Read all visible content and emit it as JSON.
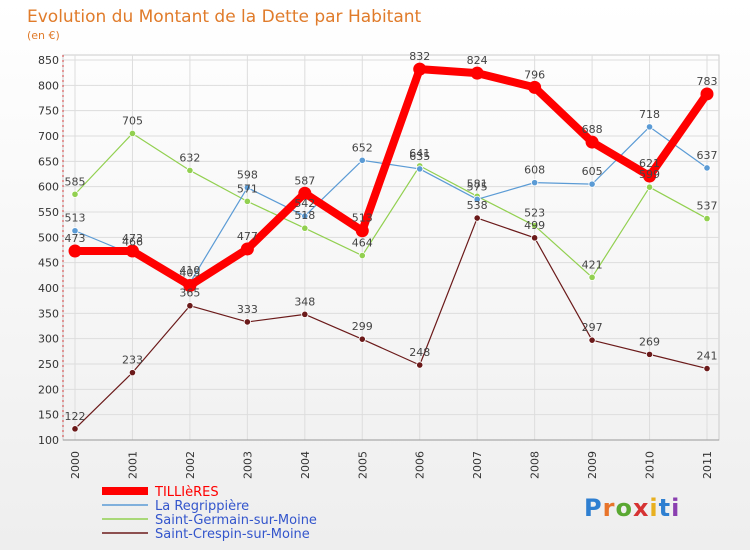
{
  "chart_data": {
    "type": "line",
    "title": "Evolution du Montant de la Dette par Habitant",
    "subtitle": "(en €)",
    "x": [
      "2000",
      "2001",
      "2002",
      "2003",
      "2004",
      "2005",
      "2006",
      "2007",
      "2008",
      "2009",
      "2010",
      "2011"
    ],
    "ylim": [
      100,
      850
    ],
    "yticks": [
      100,
      150,
      200,
      250,
      300,
      350,
      400,
      450,
      500,
      550,
      600,
      650,
      700,
      750,
      800,
      850
    ],
    "grid": true,
    "legend_position": "bottom-left",
    "series": [
      {
        "name": "TILLIèRES",
        "color": "#ff0000",
        "values": [
          473,
          473,
          405,
          477,
          587,
          513,
          832,
          824,
          796,
          688,
          621,
          783
        ]
      },
      {
        "name": "La Regrippière",
        "color": "#5b9bd5",
        "values": [
          513,
          466,
          410,
          598,
          542,
          652,
          635,
          575,
          608,
          605,
          718,
          637
        ]
      },
      {
        "name": "Saint-Germain-sur-Moine",
        "color": "#92d050",
        "values": [
          585,
          705,
          632,
          571,
          518,
          464,
          641,
          581,
          523,
          421,
          599,
          537
        ]
      },
      {
        "name": "Saint-Crespin-sur-Moine",
        "color": "#6b1a1a",
        "values": [
          122,
          233,
          365,
          333,
          348,
          299,
          248,
          538,
          499,
          297,
          269,
          241
        ]
      }
    ]
  },
  "brand": {
    "text": "Proxiti"
  }
}
